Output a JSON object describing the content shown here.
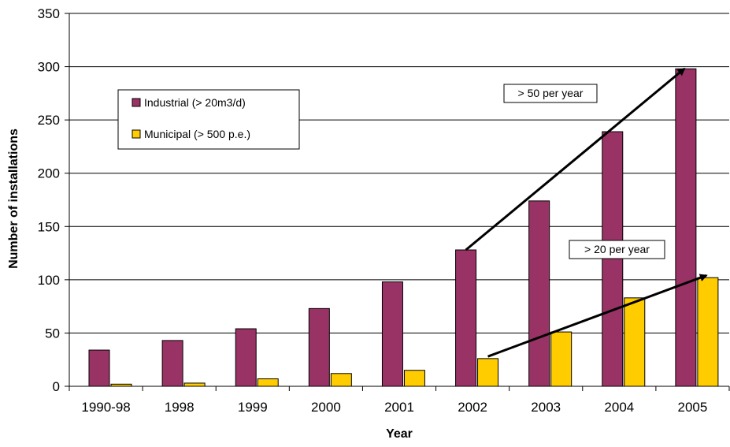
{
  "chart_data": {
    "type": "bar",
    "title": "",
    "xlabel": "Year",
    "ylabel": "Number of installations",
    "categories": [
      "1990-98",
      "1998",
      "1999",
      "2000",
      "2001",
      "2002",
      "2003",
      "2004",
      "2005"
    ],
    "ylim": [
      0,
      350
    ],
    "yticks": [
      "0",
      "50",
      "100",
      "150",
      "200",
      "250",
      "300",
      "350"
    ],
    "grid": true,
    "legend_position": "top-left",
    "series": [
      {
        "name": "Industrial (> 20m3/d)",
        "color": "#993366",
        "values": [
          34,
          43,
          54,
          73,
          98,
          128,
          174,
          239,
          298
        ]
      },
      {
        "name": "Municipal (> 500 p.e.)",
        "color": "#FFCC00",
        "values": [
          2,
          3,
          7,
          12,
          15,
          26,
          51,
          83,
          102
        ]
      }
    ],
    "annotations": [
      {
        "text": "> 50 per year",
        "arrow_from": [
          "2002",
          128
        ],
        "arrow_to": [
          "2005",
          298
        ]
      },
      {
        "text": "> 20 per year",
        "arrow_from": [
          "2002",
          28
        ],
        "arrow_to": [
          "2005",
          104
        ]
      }
    ]
  }
}
